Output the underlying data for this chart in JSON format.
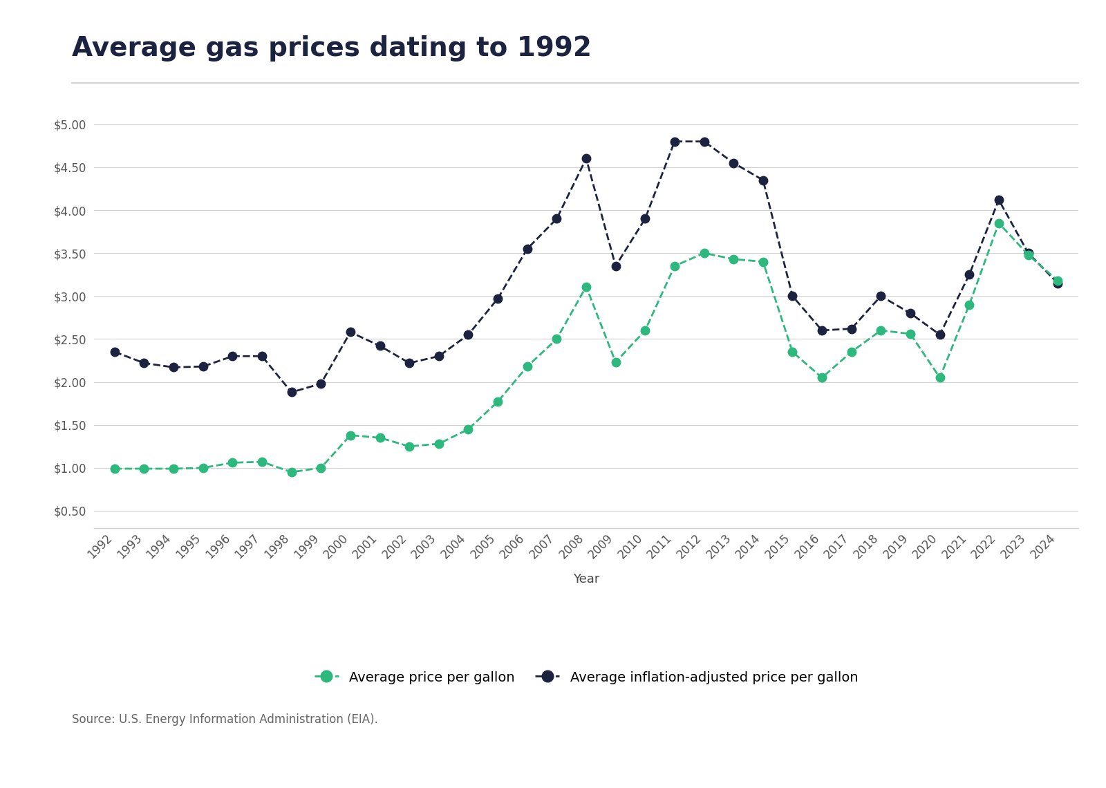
{
  "title": "Average gas prices dating to 1992",
  "xlabel": "Year",
  "years": [
    1992,
    1993,
    1994,
    1995,
    1996,
    1997,
    1998,
    1999,
    2000,
    2001,
    2002,
    2003,
    2004,
    2005,
    2006,
    2007,
    2008,
    2009,
    2010,
    2011,
    2012,
    2013,
    2014,
    2015,
    2016,
    2017,
    2018,
    2019,
    2020,
    2021,
    2022,
    2023,
    2024
  ],
  "avg_price": [
    0.99,
    0.99,
    0.99,
    1.0,
    1.06,
    1.07,
    0.95,
    1.0,
    1.38,
    1.35,
    1.25,
    1.28,
    1.45,
    1.77,
    2.18,
    2.5,
    3.11,
    2.23,
    2.6,
    3.35,
    3.5,
    3.43,
    3.4,
    2.35,
    2.05,
    2.35,
    2.6,
    2.56,
    2.05,
    2.9,
    3.85,
    3.48,
    3.18
  ],
  "adj_price": [
    2.35,
    2.22,
    2.17,
    2.18,
    2.3,
    2.3,
    1.88,
    1.98,
    2.58,
    2.42,
    2.22,
    2.3,
    2.55,
    2.97,
    3.55,
    3.9,
    4.6,
    3.35,
    3.9,
    4.8,
    4.8,
    4.55,
    4.35,
    3.0,
    2.6,
    2.62,
    3.0,
    2.8,
    2.55,
    3.25,
    4.12,
    3.5,
    3.15
  ],
  "avg_price_color": "#2db87d",
  "adj_price_color": "#1c2340",
  "background_color": "#ffffff",
  "grid_color": "#d0d0d0",
  "ytick_labels": [
    "$0.50",
    "$1.00",
    "$1.50",
    "$2.00",
    "$2.50",
    "$3.00",
    "$3.50",
    "$4.00",
    "$4.50",
    "$5.00"
  ],
  "ytick_values": [
    0.5,
    1.0,
    1.5,
    2.0,
    2.5,
    3.0,
    3.5,
    4.0,
    4.5,
    5.0
  ],
  "ylim": [
    0.3,
    5.3
  ],
  "source_text": "Source: U.S. Energy Information Administration (EIA).",
  "legend_label_green": "Average price per gallon",
  "legend_label_dark": "Average inflation-adjusted price per gallon",
  "title_fontsize": 28,
  "axis_fontsize": 13,
  "tick_fontsize": 12,
  "legend_fontsize": 14,
  "source_fontsize": 12
}
